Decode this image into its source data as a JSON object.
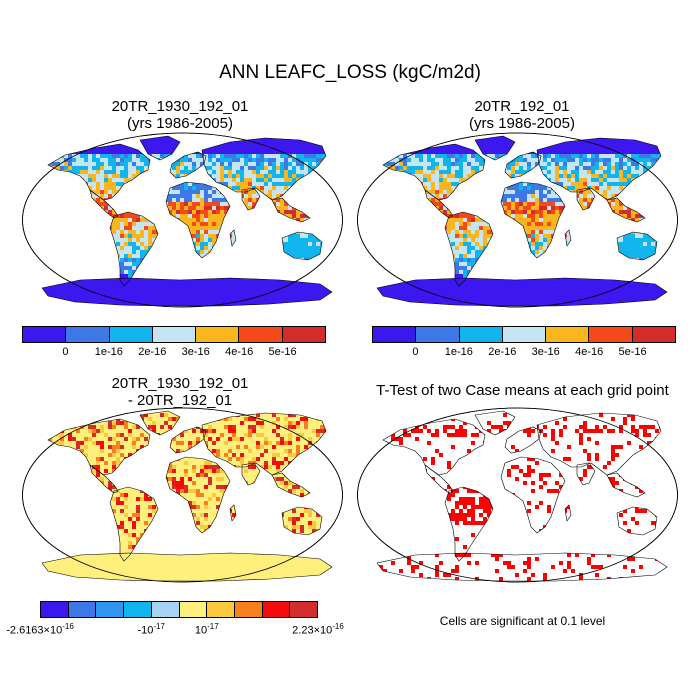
{
  "title": "ANN LEAFC_LOSS (kgC/m2d)",
  "panels": [
    {
      "id": "case1",
      "title_line1": "20TR_1930_192_01",
      "title_line2": "(yrs 1986-2005)"
    },
    {
      "id": "case2",
      "title_line1": "20TR_192_01",
      "title_line2": "(yrs 1986-2005)"
    },
    {
      "id": "diff",
      "title_line1": "20TR_1930_192_01",
      "title_line2": "- 20TR_192_01"
    },
    {
      "id": "ttest",
      "title_line1": "T-Test of two Case means at each grid point",
      "title_line2": ""
    }
  ],
  "colorbars": {
    "case": {
      "colors": [
        "#3d17ef",
        "#3c78e6",
        "#11b5ee",
        "#c5e5f3",
        "#fbb61d",
        "#f34a17",
        "#d22d2a"
      ],
      "labels": [
        "0",
        "1e-16",
        "2e-16",
        "3e-16",
        "4e-16",
        "5e-16"
      ]
    },
    "diff": {
      "colors": [
        "#3d17ef",
        "#3c78e6",
        "#2f95ee",
        "#11b5ee",
        "#a6d3f1",
        "#fff07d",
        "#fbc93d",
        "#f8801c",
        "#f50b0b",
        "#d22d2a"
      ],
      "label_left": "-2.6163×10",
      "label_left_exp": "-16",
      "label_mid1": "-10",
      "label_mid1_exp": "-17",
      "label_mid2": "10",
      "label_mid2_exp": "-17",
      "label_right": "2.23×10",
      "label_right_exp": "-16"
    }
  },
  "significance_note": "Cells are significant at 0.1 level",
  "map_colors": {
    "ocean": "#ffffff",
    "coast": "#000000",
    "significant": "#ff0000"
  }
}
